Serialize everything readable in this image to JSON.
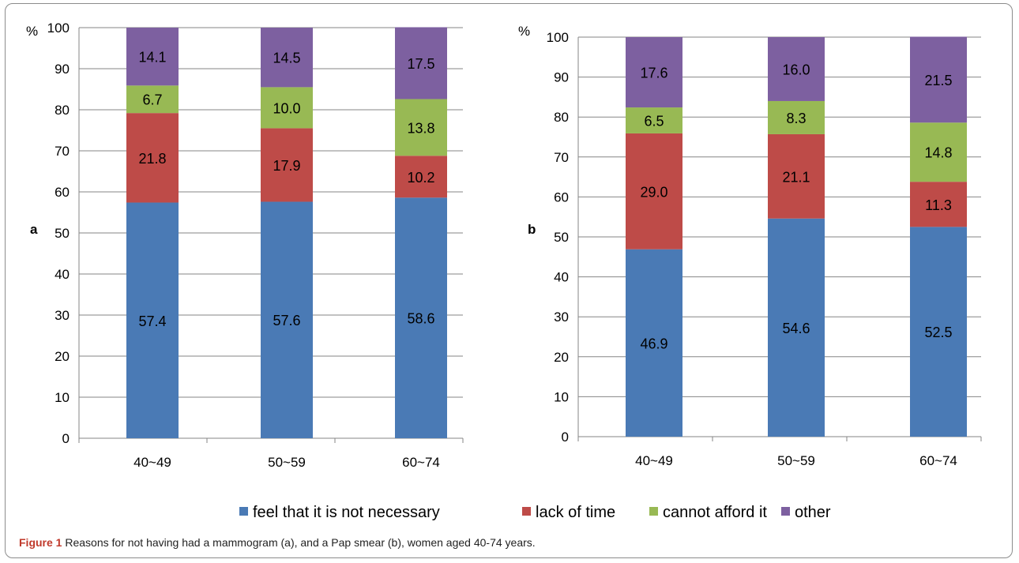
{
  "figure_label": "Figure 1",
  "caption_text": "Reasons for not having had a mammogram (a), and a Pap smear (b), women aged 40-74 years.",
  "legend": [
    {
      "name": "feel that it is not necessary",
      "color": "#4a7ab5"
    },
    {
      "name": "lack of time",
      "color": "#be4b48"
    },
    {
      "name": "cannot afford it",
      "color": "#98b954"
    },
    {
      "name": "other",
      "color": "#7d60a0"
    }
  ],
  "chart_data": [
    {
      "type": "bar",
      "stacked": true,
      "panel": "a",
      "ylabel": "%",
      "ylim": [
        0,
        100
      ],
      "yticks": [
        0,
        10,
        20,
        30,
        40,
        50,
        60,
        70,
        80,
        90,
        100
      ],
      "grid": true,
      "categories": [
        "40~49",
        "50~59",
        "60~74"
      ],
      "series": [
        {
          "name": "feel that it is not necessary",
          "values": [
            57.4,
            57.6,
            58.6
          ]
        },
        {
          "name": "lack of time",
          "values": [
            21.8,
            17.9,
            10.2
          ]
        },
        {
          "name": "cannot afford it",
          "values": [
            6.7,
            10.0,
            13.8
          ]
        },
        {
          "name": "other",
          "values": [
            14.1,
            14.5,
            17.5
          ]
        }
      ]
    },
    {
      "type": "bar",
      "stacked": true,
      "panel": "b",
      "ylabel": "%",
      "ylim": [
        0,
        100
      ],
      "yticks": [
        0,
        10,
        20,
        30,
        40,
        50,
        60,
        70,
        80,
        90,
        100
      ],
      "grid": true,
      "categories": [
        "40~49",
        "50~59",
        "60~74"
      ],
      "series": [
        {
          "name": "feel that it is not necessary",
          "values": [
            46.9,
            54.6,
            52.5
          ]
        },
        {
          "name": "lack of time",
          "values": [
            29.0,
            21.1,
            11.3
          ]
        },
        {
          "name": "cannot afford it",
          "values": [
            6.5,
            8.3,
            14.8
          ]
        },
        {
          "name": "other",
          "values": [
            17.6,
            16.0,
            21.5
          ]
        }
      ]
    }
  ]
}
